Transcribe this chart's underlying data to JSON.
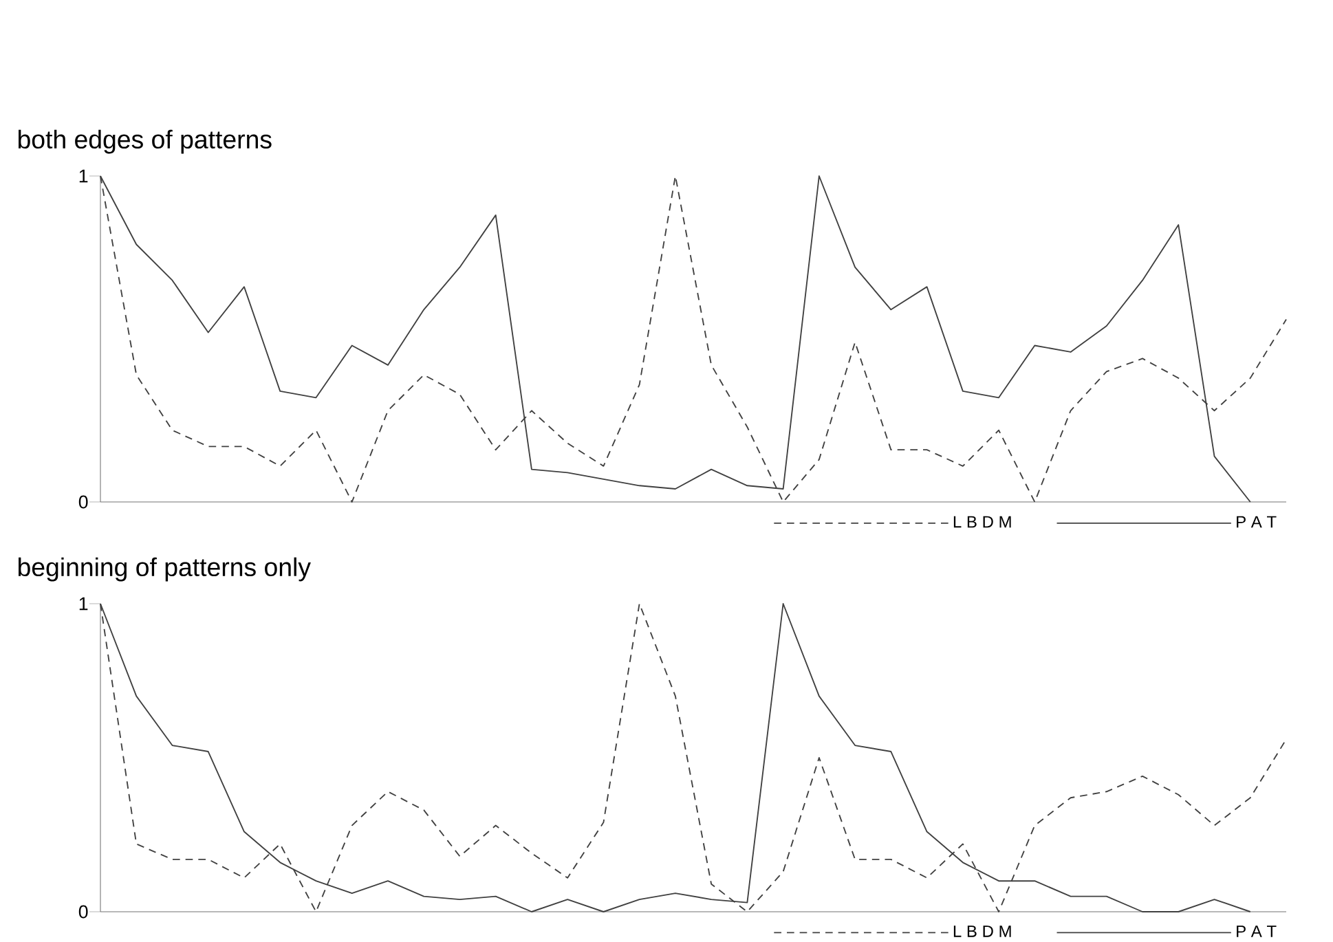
{
  "chart_data": [
    {
      "type": "line",
      "title": "both edges of patterns",
      "categories": [
        null,
        null,
        null,
        null,
        null,
        null,
        null,
        null,
        null,
        null,
        null,
        null,
        null,
        null,
        null,
        null,
        null,
        null,
        null,
        null,
        null,
        null,
        null,
        null,
        null,
        null,
        null,
        null,
        null,
        null,
        null,
        null,
        null,
        null
      ],
      "ylim": [
        0,
        1
      ],
      "yticks": [
        0,
        1
      ],
      "legend": "bottom",
      "series": [
        {
          "name": "L B D M",
          "color": "#404040",
          "line_style": "dashed",
          "values": [
            1,
            0.39,
            0.22,
            0.17,
            0.17,
            0.11,
            0.22,
            0,
            0.28,
            0.39,
            0.33,
            0.16,
            0.28,
            0.18,
            0.11,
            0.36,
            1,
            0.42,
            0.23,
            0,
            0.13,
            0.49,
            0.16,
            0.16,
            0.11,
            0.22,
            0,
            0.28,
            0.4,
            0.44,
            0.38,
            0.28,
            0.38,
            0.56
          ]
        },
        {
          "name": "P A T",
          "color": "#404040",
          "line_style": "solid",
          "values": [
            1,
            0.79,
            0.68,
            0.52,
            0.66,
            0.34,
            0.32,
            0.48,
            0.42,
            0.59,
            0.72,
            0.88,
            0.1,
            0.09,
            0.07,
            0.05,
            0.04,
            0.1,
            0.05,
            0.04,
            1,
            0.72,
            0.59,
            0.66,
            0.34,
            0.32,
            0.48,
            0.46,
            0.54,
            0.68,
            0.85,
            0.14,
            0,
            null
          ]
        }
      ]
    },
    {
      "type": "line",
      "title": "beginning of patterns only",
      "categories": [
        null,
        null,
        null,
        null,
        null,
        null,
        null,
        null,
        null,
        null,
        null,
        null,
        null,
        null,
        null,
        null,
        null,
        null,
        null,
        null,
        null,
        null,
        null,
        null,
        null,
        null,
        null,
        null,
        null,
        null,
        null,
        null,
        null,
        null
      ],
      "ylim": [
        0,
        1
      ],
      "yticks": [
        0,
        1
      ],
      "legend": "bottom",
      "series": [
        {
          "name": "L B D M",
          "color": "#404040",
          "line_style": "dashed",
          "values": [
            1,
            0.22,
            0.17,
            0.17,
            0.11,
            0.22,
            0,
            0.28,
            0.39,
            0.33,
            0.18,
            0.28,
            0.19,
            0.11,
            0.29,
            1,
            0.7,
            0.09,
            0,
            0.13,
            0.5,
            0.17,
            0.17,
            0.11,
            0.22,
            0,
            0.28,
            0.37,
            0.39,
            0.44,
            0.38,
            0.28,
            0.37,
            0.56
          ]
        },
        {
          "name": "P A T",
          "color": "#404040",
          "line_style": "solid",
          "values": [
            1,
            0.7,
            0.54,
            0.52,
            0.26,
            0.16,
            0.1,
            0.06,
            0.1,
            0.05,
            0.04,
            0.05,
            0,
            0.04,
            0,
            0.04,
            0.06,
            0.04,
            0.03,
            1,
            0.7,
            0.54,
            0.52,
            0.26,
            0.16,
            0.1,
            0.1,
            0.05,
            0.05,
            0,
            0,
            0.04,
            0,
            null
          ]
        }
      ]
    }
  ]
}
